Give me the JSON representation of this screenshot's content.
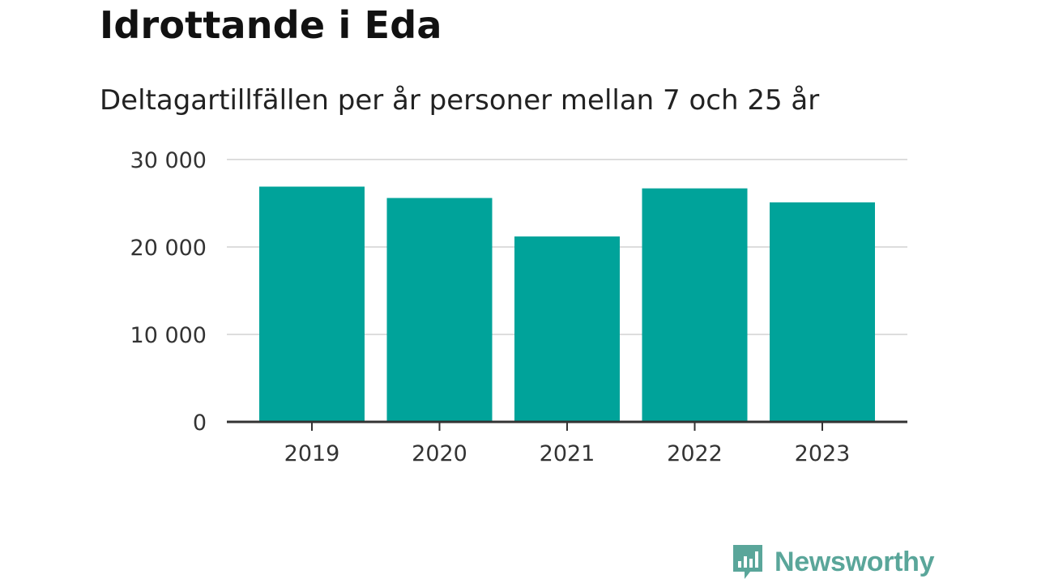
{
  "header": {
    "title": "Idrottande i Eda",
    "subtitle": "Deltagartillfällen per år personer mellan 7 och 25 år"
  },
  "brand": {
    "name": "Newsworthy",
    "icon": "newsworthy-logo-icon",
    "color": "#5aa69a"
  },
  "chart_data": {
    "type": "bar",
    "title": "Idrottande i Eda",
    "subtitle": "Deltagartillfällen per år personer mellan 7 och 25 år",
    "categories": [
      "2019",
      "2020",
      "2021",
      "2022",
      "2023"
    ],
    "series": [
      {
        "values": [
          26900,
          25600,
          21200,
          26700,
          25100
        ]
      }
    ],
    "ylim": [
      0,
      30000
    ],
    "yticks": [
      0,
      10000,
      20000,
      30000
    ],
    "ytick_labels": [
      "0",
      "10 000",
      "20 000",
      "30 000"
    ],
    "xlabel": "",
    "ylabel": "",
    "grid": true,
    "legend": "none",
    "bar_color": "#00a39a",
    "gridline_color": "#dddddd",
    "axis_color": "#333333"
  }
}
